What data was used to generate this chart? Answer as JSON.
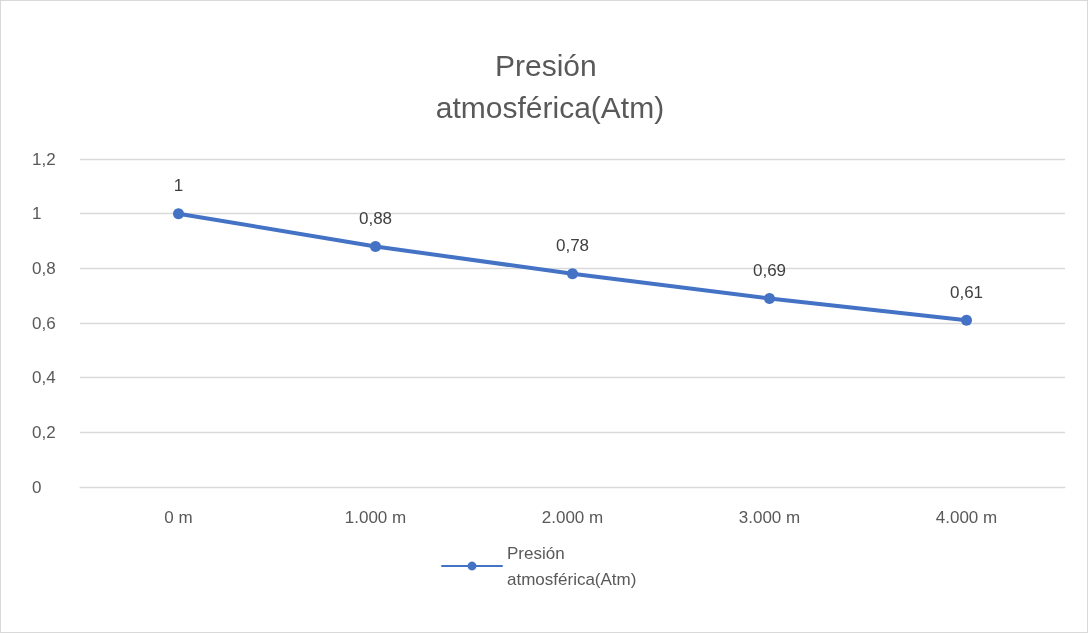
{
  "chart_data": {
    "type": "line",
    "title": "Presión atmosférica(Atm)",
    "categories": [
      "0 m",
      "1.000 m",
      "2.000 m",
      "3.000 m",
      "4.000 m"
    ],
    "series": [
      {
        "name": "Presión atmosférica(Atm)",
        "color": "#4472c4",
        "values": [
          1,
          0.88,
          0.78,
          0.69,
          0.61
        ],
        "value_labels": [
          "1",
          "0,88",
          "0,78",
          "0,69",
          "0,61"
        ]
      }
    ],
    "ylim": [
      0,
      1.2
    ],
    "yticks": [
      0,
      {
        "value": 0.2,
        "label": "0,2"
      },
      {
        "value": 0.4,
        "label": "0,4"
      },
      {
        "value": 0.6,
        "label": "0,6"
      },
      {
        "value": 0.8,
        "label": "0,8"
      },
      1,
      {
        "value": 1.2,
        "label": "1,2"
      }
    ],
    "grid": "y",
    "legend": "bottom",
    "marker": "circle",
    "line_style": "solid"
  }
}
